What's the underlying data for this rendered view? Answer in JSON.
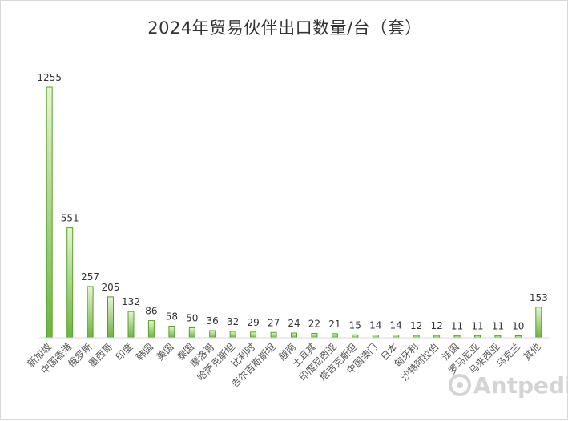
{
  "chart_data": {
    "type": "bar",
    "title": "2024年贸易伙伴出口数量/台（套）",
    "xlabel": "",
    "ylabel": "",
    "ylim": [
      0,
      1300
    ],
    "grid": false,
    "legend": "none",
    "categories": [
      "新加坡",
      "中国香港",
      "俄罗斯",
      "墨西哥",
      "印度",
      "韩国",
      "美国",
      "泰国",
      "摩洛哥",
      "哈萨克斯坦",
      "比利时",
      "吉尔吉斯斯坦",
      "越南",
      "土耳其",
      "印度尼西亚",
      "塔吉克斯坦",
      "中国澳门",
      "日本",
      "匈牙利",
      "沙特阿拉伯",
      "法国",
      "罗马尼亚",
      "马来西亚",
      "乌克兰",
      "其他"
    ],
    "values": [
      1255,
      551,
      257,
      205,
      132,
      86,
      58,
      50,
      36,
      32,
      29,
      27,
      24,
      22,
      21,
      15,
      14,
      14,
      12,
      12,
      11,
      11,
      11,
      10,
      153
    ],
    "colors": {
      "bar_fill_top": "#e6f4d6",
      "bar_fill_bottom": "#6db33f",
      "bar_stroke": "#5aa02c",
      "axis": "#d9d9d9"
    }
  },
  "watermark": {
    "text": "Antpedia",
    "icon": "antpedia-logo-icon"
  }
}
